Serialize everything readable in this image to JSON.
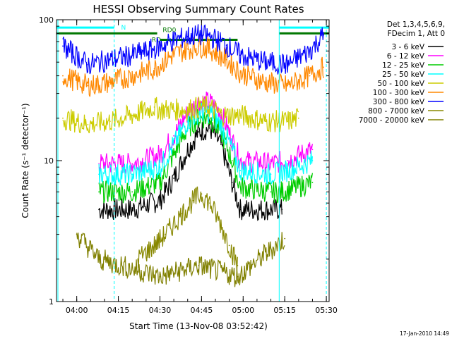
{
  "chart_data": {
    "type": "line",
    "title": "HESSI Observing Summary Count Rates",
    "xlabel": "Start Time (13-Nov-08 03:52:42)",
    "ylabel": "Count Rate (s⁻¹ detector⁻¹)",
    "y_scale": "log",
    "ylim": [
      1,
      100
    ],
    "xlim": [
      "03:52:42",
      "05:31:00"
    ],
    "x_ticks": [
      "04:00",
      "04:15",
      "04:30",
      "04:45",
      "05:00",
      "05:15",
      "05:30"
    ],
    "y_ticks": [
      "1",
      "10",
      "100"
    ],
    "legend_placement": "right, outside plot",
    "legend_header": [
      "Det 1,3,4,5,6,9,",
      "FDecim 1, Att 0"
    ],
    "series": [
      {
        "name": "3 - 6 keV",
        "color": "#000000",
        "points": [
          [
            "04:08",
            4.5
          ],
          [
            "04:20",
            4.5
          ],
          [
            "04:30",
            5.2
          ],
          [
            "04:35",
            7.5
          ],
          [
            "04:40",
            12
          ],
          [
            "04:44",
            16
          ],
          [
            "04:48",
            17
          ],
          [
            "04:52",
            13
          ],
          [
            "04:56",
            7
          ],
          [
            "04:59",
            4.5
          ],
          [
            "05:10",
            4.5
          ],
          [
            "05:14",
            4.5
          ]
        ]
      },
      {
        "name": "6 - 12 keV",
        "color": "#ff00ff",
        "points": [
          [
            "04:08",
            9.5
          ],
          [
            "04:20",
            9.5
          ],
          [
            "04:30",
            11
          ],
          [
            "04:35",
            15
          ],
          [
            "04:40",
            22
          ],
          [
            "04:44",
            26
          ],
          [
            "04:48",
            26
          ],
          [
            "04:52",
            22
          ],
          [
            "04:56",
            14
          ],
          [
            "04:59",
            10
          ],
          [
            "05:10",
            9.5
          ],
          [
            "05:16",
            10
          ],
          [
            "05:25",
            12
          ]
        ]
      },
      {
        "name": "12 - 25 keV",
        "color": "#00cc00",
        "points": [
          [
            "04:08",
            6
          ],
          [
            "04:20",
            6
          ],
          [
            "04:30",
            7
          ],
          [
            "04:35",
            11
          ],
          [
            "04:40",
            17
          ],
          [
            "04:44",
            20
          ],
          [
            "04:48",
            20
          ],
          [
            "04:52",
            16
          ],
          [
            "04:56",
            10
          ],
          [
            "04:59",
            6.5
          ],
          [
            "05:10",
            6
          ],
          [
            "05:14",
            6
          ],
          [
            "05:25",
            7
          ]
        ]
      },
      {
        "name": "25 - 50 keV",
        "color": "#00ffff",
        "points": [
          [
            "04:08",
            8
          ],
          [
            "04:20",
            8
          ],
          [
            "04:30",
            9
          ],
          [
            "04:35",
            13
          ],
          [
            "04:40",
            19
          ],
          [
            "04:44",
            22
          ],
          [
            "04:48",
            22
          ],
          [
            "04:52",
            18
          ],
          [
            "04:56",
            12
          ],
          [
            "04:59",
            8.5
          ],
          [
            "05:10",
            8
          ],
          [
            "05:16",
            8.5
          ],
          [
            "05:25",
            10
          ]
        ]
      },
      {
        "name": "50 - 100 keV",
        "color": "#cccc00",
        "points": [
          [
            "03:55",
            20
          ],
          [
            "04:04",
            18
          ],
          [
            "04:12",
            19
          ],
          [
            "04:20",
            21
          ],
          [
            "04:28",
            24
          ],
          [
            "04:30",
            23
          ],
          [
            "04:40",
            23
          ],
          [
            "04:44",
            24
          ],
          [
            "04:48",
            24
          ],
          [
            "04:52",
            21
          ],
          [
            "04:59",
            21
          ],
          [
            "05:08",
            19
          ],
          [
            "05:16",
            19
          ],
          [
            "05:20",
            20
          ]
        ]
      },
      {
        "name": "100 - 300 keV",
        "color": "#ff8800",
        "points": [
          [
            "03:55",
            40
          ],
          [
            "04:04",
            34
          ],
          [
            "04:12",
            36
          ],
          [
            "04:20",
            40
          ],
          [
            "04:28",
            45
          ],
          [
            "04:34",
            55
          ],
          [
            "04:40",
            62
          ],
          [
            "04:44",
            65
          ],
          [
            "04:48",
            62
          ],
          [
            "04:54",
            52
          ],
          [
            "04:59",
            42
          ],
          [
            "05:08",
            36
          ],
          [
            "05:16",
            34
          ],
          [
            "05:24",
            40
          ],
          [
            "05:29",
            46
          ]
        ]
      },
      {
        "name": "300 - 800 keV",
        "color": "#0000ff",
        "points": [
          [
            "03:55",
            65
          ],
          [
            "04:04",
            48
          ],
          [
            "04:12",
            52
          ],
          [
            "04:20",
            56
          ],
          [
            "04:28",
            62
          ],
          [
            "04:34",
            70
          ],
          [
            "04:40",
            76
          ],
          [
            "04:44",
            78
          ],
          [
            "04:48",
            76
          ],
          [
            "04:54",
            66
          ],
          [
            "04:59",
            56
          ],
          [
            "05:08",
            50
          ],
          [
            "05:16",
            48
          ],
          [
            "05:24",
            60
          ],
          [
            "05:29",
            78
          ]
        ]
      },
      {
        "name": "800 - 7000 keV",
        "color": "#888800",
        "points": [
          [
            "04:22",
            2
          ],
          [
            "04:28",
            2.5
          ],
          [
            "04:32",
            3
          ],
          [
            "04:38",
            4.2
          ],
          [
            "04:42",
            5.2
          ],
          [
            "04:45",
            5.8
          ],
          [
            "04:48",
            5
          ],
          [
            "04:52",
            3.5
          ],
          [
            "04:55",
            2.5
          ],
          [
            "04:58",
            1.8
          ]
        ]
      },
      {
        "name": "7000 - 20000 keV",
        "color": "#808000",
        "points": [
          [
            "04:00",
            3
          ],
          [
            "04:08",
            2
          ],
          [
            "04:30",
            1.5
          ],
          [
            "04:44",
            1.8
          ],
          [
            "04:58",
            1.5
          ],
          [
            "05:15",
            2.8
          ]
        ]
      }
    ],
    "flag_bars": [
      {
        "label": "N",
        "color": "#00ffff"
      },
      {
        "label": "RD",
        "color": "#007700"
      },
      {
        "label": "RD0",
        "color": "#007700"
      }
    ],
    "timestamp": "17-Jan-2010 14:49"
  },
  "colors": {
    "axes": "#000000",
    "background": "#ffffff",
    "guides": "#00ffff"
  }
}
